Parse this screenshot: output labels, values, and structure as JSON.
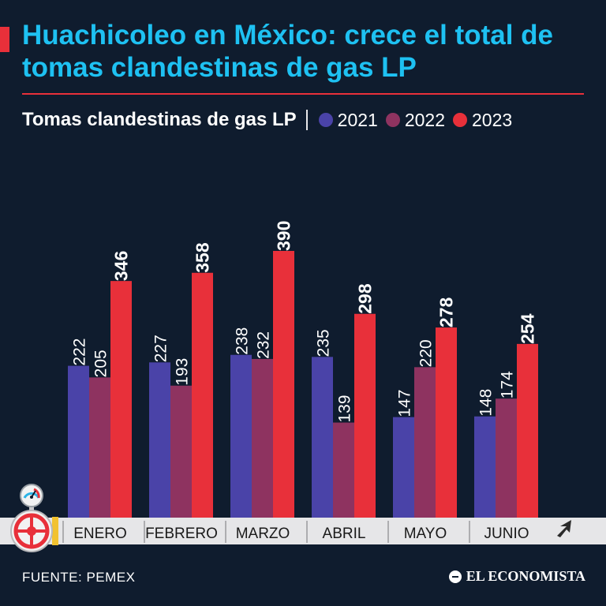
{
  "header": {
    "title": "Huachicoleo en México: crece el total de tomas clandestinas de gas LP"
  },
  "colors": {
    "background": "#0f1c2e",
    "title": "#1ec1f2",
    "accent": "#e8303a",
    "y2021": "#4a43a8",
    "y2022": "#8e3360",
    "y2023": "#e8303a"
  },
  "icons": [
    "gauge-icon",
    "valve-wheel-icon",
    "arrow-icon"
  ],
  "chart_data": {
    "type": "bar",
    "title": "Tomas clandestinas de gas LP",
    "categories": [
      "ENERO",
      "FEBRERO",
      "MARZO",
      "ABRIL",
      "MAYO",
      "JUNIO"
    ],
    "series": [
      {
        "name": "2021",
        "values": [
          222,
          227,
          238,
          235,
          147,
          148
        ]
      },
      {
        "name": "2022",
        "values": [
          205,
          193,
          232,
          139,
          220,
          174
        ]
      },
      {
        "name": "2023",
        "values": [
          346,
          358,
          390,
          298,
          278,
          254
        ]
      }
    ],
    "ylim": [
      0,
      390
    ],
    "grid": false,
    "legend": "top"
  },
  "footer": {
    "source": "FUENTE: PEMEX",
    "brand": "EL ECONOMISTA"
  }
}
